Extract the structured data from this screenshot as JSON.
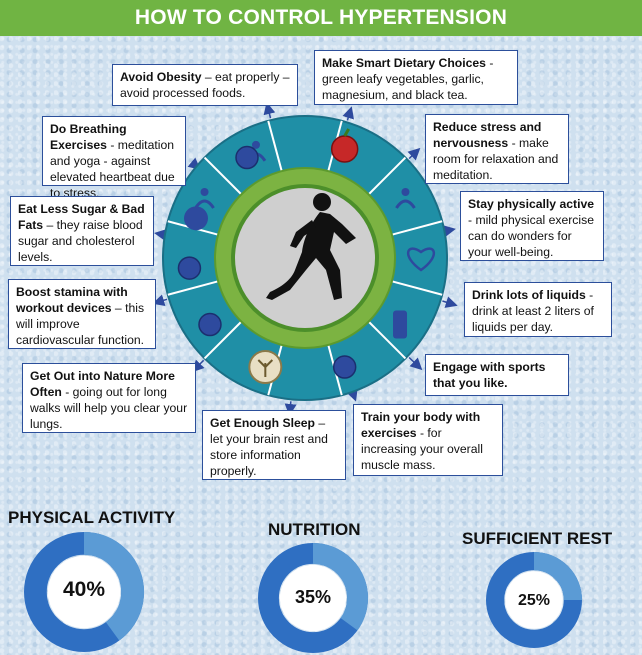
{
  "title": "HOW TO CONTROL HYPERTENSION",
  "colors": {
    "banner": "#70b443",
    "outer_ring": "#1f8fa6",
    "green_ring": "#7cb342",
    "inner_disc": "#cfcfcf",
    "icon_blue": "#2e4a9e",
    "callout_border": "#2c4f9b",
    "donut_dark": "#2f6fc2",
    "donut_light": "#5b9bd5"
  },
  "icons": [
    "yoga-icon",
    "baby-icon",
    "apple-icon",
    "runner-icon",
    "heart-icon",
    "bottle-icon",
    "ball-icon",
    "tree-icon",
    "ball-icon",
    "ball-icon",
    "dumbbell-icon",
    "runner-silhouette-icon"
  ],
  "tips": [
    {
      "bold": "Avoid Obesity",
      "text": " – eat properly – avoid processed foods."
    },
    {
      "bold": "Make Smart Dietary Choices",
      "text": " - green leafy vegetables, garlic, magnesium, and black tea."
    },
    {
      "bold": "Do Breathing Exercises",
      "text": " - meditation and yoga - against elevated heartbeat due to stress."
    },
    {
      "bold": "Reduce stress and nervousness",
      "text": " - make room for relaxation and meditation."
    },
    {
      "bold": "Eat Less Sugar & Bad Fats",
      "text": " – they raise blood sugar and cholesterol levels."
    },
    {
      "bold": "Stay physically active",
      "text": " - mild physical exercise can do wonders for your well-being."
    },
    {
      "bold": "Boost stamina with workout devices",
      "text": " – this will improve cardiovascular function."
    },
    {
      "bold": "Drink lots of liquids",
      "text": " - drink at least 2 liters of liquids per day."
    },
    {
      "bold": "Get Out into Nature More Often",
      "text": " - going out for long walks will help you clear your lungs."
    },
    {
      "bold": "Engage with sports that you like.",
      "text": ""
    },
    {
      "bold": "Get Enough Sleep",
      "text": " – let your brain rest and store information properly."
    },
    {
      "bold": "Train your body with exercises",
      "text": " - for increasing your overall muscle mass."
    }
  ],
  "stats": [
    {
      "title": "PHYSICAL ACTIVITY",
      "label": "40%",
      "value": 40
    },
    {
      "title": "NUTRITION",
      "label": "35%",
      "value": 35
    },
    {
      "title": "SUFFICIENT REST",
      "label": "25%",
      "value": 25
    }
  ]
}
